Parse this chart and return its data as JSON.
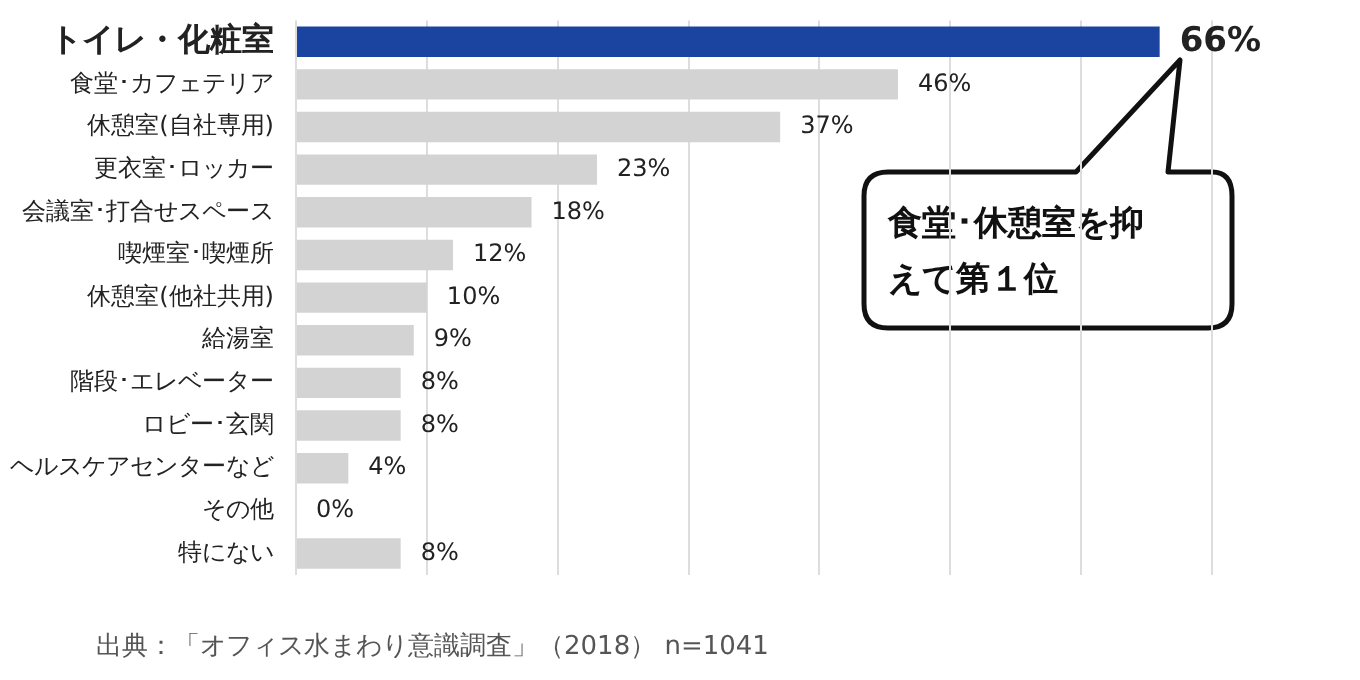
{
  "chart_data": {
    "type": "bar",
    "orientation": "horizontal",
    "categories": [
      "トイレ・化粧室",
      "食堂･カフェテリア",
      "休憩室(自社専用)",
      "更衣室･ロッカー",
      "会議室･打合せスペース",
      "喫煙室･喫煙所",
      "休憩室(他社共用)",
      "給湯室",
      "階段･エレベーター",
      "ロビー･玄関",
      "ヘルスケアセンターなど",
      "その他",
      "特にない"
    ],
    "values": [
      66,
      46,
      37,
      23,
      18,
      12,
      10,
      9,
      8,
      8,
      4,
      0,
      8
    ],
    "colors": [
      "#1a44a0",
      "#d3d3d3",
      "#d3d3d3",
      "#d3d3d3",
      "#d3d3d3",
      "#d3d3d3",
      "#d3d3d3",
      "#d3d3d3",
      "#d3d3d3",
      "#d3d3d3",
      "#d3d3d3",
      "#d3d3d3",
      "#d3d3d3"
    ],
    "value_labels": [
      "66%",
      "46%",
      "37%",
      "23%",
      "18%",
      "12%",
      "10%",
      "9%",
      "8%",
      "8%",
      "4%",
      "0%",
      "8%"
    ],
    "xlim": [
      0,
      70
    ],
    "xticks": [
      {
        "value": 0,
        "label": null
      },
      {
        "value": 10,
        "label": null
      },
      {
        "value": 20,
        "label": null
      },
      {
        "value": 30,
        "label": null
      },
      {
        "value": 40,
        "label": null
      },
      {
        "value": 50,
        "label": null
      },
      {
        "value": 60,
        "label": null
      },
      {
        "value": 70,
        "label": null
      }
    ],
    "tick_labels": "y",
    "grid": "x",
    "legend": false,
    "annotations": [
      "食堂･休憩室を抑えて第１位",
      "出典：「オフィス水まわり意識調査」（2018） n=1041"
    ]
  }
}
